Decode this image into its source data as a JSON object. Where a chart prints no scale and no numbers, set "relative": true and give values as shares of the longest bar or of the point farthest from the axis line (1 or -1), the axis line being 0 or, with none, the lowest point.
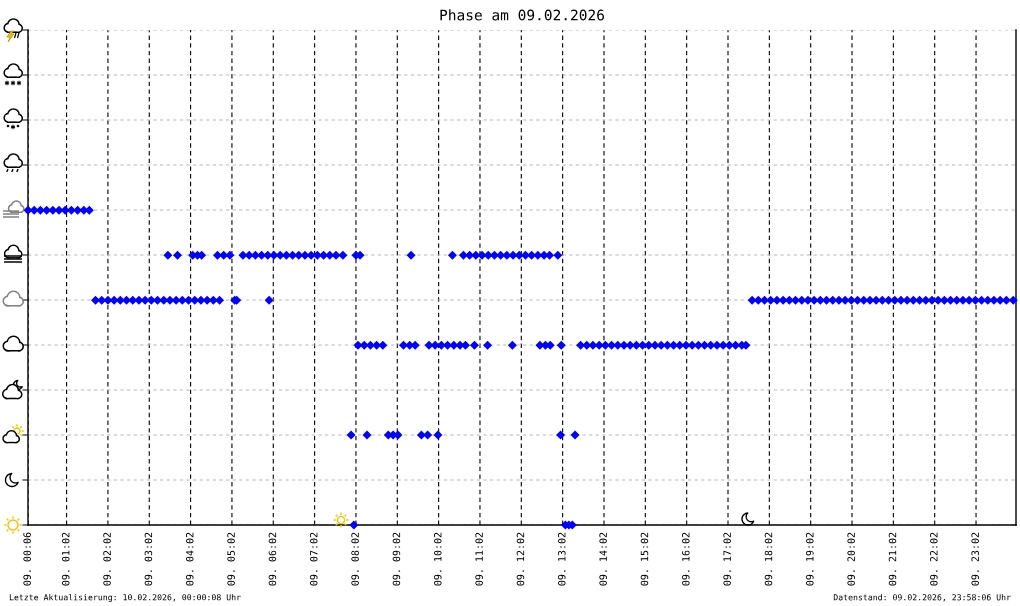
{
  "chart_data": {
    "type": "scatter",
    "title": "Phase am 09.02.2026",
    "annotations": [
      "Letzte Aktualisierung: 10.02.2026, 00:00:08 Uhr",
      "Datenstand: 09.02.2026, 23:58:06 Uhr"
    ],
    "relative": true,
    "x": [
      "2026-02-09T00:06",
      "2026-02-09T00:15",
      "2026-02-09T00:24",
      "2026-02-09T00:33",
      "2026-02-09T00:42",
      "2026-02-09T00:51",
      "2026-02-09T01:00",
      "2026-02-09T01:09",
      "2026-02-09T01:18",
      "2026-02-09T01:27",
      "2026-02-09T01:35",
      "2026-02-09T01:44",
      "2026-02-09T01:53",
      "2026-02-09T02:02",
      "2026-02-09T02:11",
      "2026-02-09T02:20",
      "2026-02-09T02:29",
      "2026-02-09T02:38",
      "2026-02-09T02:47",
      "2026-02-09T02:56",
      "2026-02-09T03:05",
      "2026-02-09T03:14",
      "2026-02-09T03:23",
      "2026-02-09T03:32",
      "2026-02-09T03:41",
      "2026-02-09T03:50",
      "2026-02-09T03:59",
      "2026-02-09T04:08",
      "2026-02-09T04:17",
      "2026-02-09T04:26",
      "2026-02-09T04:35",
      "2026-02-09T04:44",
      "2026-02-09T05:06",
      "2026-02-09T05:09",
      "2026-02-09T05:56",
      "2026-02-09T03:29",
      "2026-02-09T03:43",
      "2026-02-09T04:05",
      "2026-02-09T04:12",
      "2026-02-09T04:18",
      "2026-02-09T04:41",
      "2026-02-09T04:50",
      "2026-02-09T04:59",
      "2026-02-09T05:18",
      "2026-02-09T05:27",
      "2026-02-09T05:36",
      "2026-02-09T05:45",
      "2026-02-09T05:54",
      "2026-02-09T06:03",
      "2026-02-09T06:12",
      "2026-02-09T06:21",
      "2026-02-09T06:30",
      "2026-02-09T06:39",
      "2026-02-09T06:48",
      "2026-02-09T06:57",
      "2026-02-09T07:06",
      "2026-02-09T07:15",
      "2026-02-09T07:24",
      "2026-02-09T07:33",
      "2026-02-09T07:43",
      "2026-02-09T08:02",
      "2026-02-09T08:08",
      "2026-02-09T09:22",
      "2026-02-09T10:22",
      "2026-02-09T10:38",
      "2026-02-09T10:47",
      "2026-02-09T10:56",
      "2026-02-09T11:05",
      "2026-02-09T11:14",
      "2026-02-09T11:23",
      "2026-02-09T11:32",
      "2026-02-09T11:41",
      "2026-02-09T11:50",
      "2026-02-09T11:59",
      "2026-02-09T12:08",
      "2026-02-09T12:17",
      "2026-02-09T12:26",
      "2026-02-09T12:35",
      "2026-02-09T12:43",
      "2026-02-09T12:55",
      "2026-02-09T08:05",
      "2026-02-09T08:14",
      "2026-02-09T08:23",
      "2026-02-09T08:32",
      "2026-02-09T08:41",
      "2026-02-09T09:11",
      "2026-02-09T09:20",
      "2026-02-09T09:28",
      "2026-02-09T09:48",
      "2026-02-09T09:57",
      "2026-02-09T10:06",
      "2026-02-09T10:15",
      "2026-02-09T10:24",
      "2026-02-09T10:33",
      "2026-02-09T10:41",
      "2026-02-09T10:54",
      "2026-02-09T11:13",
      "2026-02-09T11:49",
      "2026-02-09T12:29",
      "2026-02-09T12:37",
      "2026-02-09T12:44",
      "2026-02-09T13:00",
      "2026-02-09T13:28",
      "2026-02-09T13:37",
      "2026-02-09T13:46",
      "2026-02-09T13:55",
      "2026-02-09T14:04",
      "2026-02-09T14:13",
      "2026-02-09T14:22",
      "2026-02-09T14:31",
      "2026-02-09T14:40",
      "2026-02-09T14:49",
      "2026-02-09T14:58",
      "2026-02-09T15:07",
      "2026-02-09T15:16",
      "2026-02-09T15:25",
      "2026-02-09T15:34",
      "2026-02-09T15:43",
      "2026-02-09T15:52",
      "2026-02-09T16:01",
      "2026-02-09T16:10",
      "2026-02-09T16:19",
      "2026-02-09T16:28",
      "2026-02-09T16:37",
      "2026-02-09T16:46",
      "2026-02-09T16:55",
      "2026-02-09T17:04",
      "2026-02-09T17:13",
      "2026-02-09T17:22",
      "2026-02-09T17:28",
      "2026-02-09T07:55",
      "2026-02-09T08:18",
      "2026-02-09T08:49",
      "2026-02-09T08:56",
      "2026-02-09T09:03",
      "2026-02-09T09:37",
      "2026-02-09T09:46",
      "2026-02-09T10:01",
      "2026-02-09T12:59",
      "2026-02-09T13:20",
      "2026-02-09T07:59",
      "2026-02-09T13:06",
      "2026-02-09T13:11",
      "2026-02-09T13:16",
      "2026-02-09T17:37",
      "2026-02-09T17:46",
      "2026-02-09T17:55",
      "2026-02-09T18:04",
      "2026-02-09T18:13",
      "2026-02-09T18:22",
      "2026-02-09T18:31",
      "2026-02-09T18:40",
      "2026-02-09T18:49",
      "2026-02-09T18:58",
      "2026-02-09T19:07",
      "2026-02-09T19:16",
      "2026-02-09T19:25",
      "2026-02-09T19:34",
      "2026-02-09T19:43",
      "2026-02-09T19:52",
      "2026-02-09T20:01",
      "2026-02-09T20:10",
      "2026-02-09T20:19",
      "2026-02-09T20:28",
      "2026-02-09T20:37",
      "2026-02-09T20:46",
      "2026-02-09T20:55",
      "2026-02-09T21:04",
      "2026-02-09T21:13",
      "2026-02-09T21:22",
      "2026-02-09T21:31",
      "2026-02-09T21:40",
      "2026-02-09T21:49",
      "2026-02-09T21:58",
      "2026-02-09T22:07",
      "2026-02-09T22:16",
      "2026-02-09T22:25",
      "2026-02-09T22:34",
      "2026-02-09T22:43",
      "2026-02-09T22:52",
      "2026-02-09T23:01",
      "2026-02-09T23:10",
      "2026-02-09T23:19",
      "2026-02-09T23:28",
      "2026-02-09T23:37",
      "2026-02-09T23:46",
      "2026-02-09T23:56"
    ],
    "values": [
      1,
      1,
      1,
      1,
      1,
      1,
      1,
      1,
      1,
      1,
      1,
      0.714,
      0.714,
      0.714,
      0.714,
      0.714,
      0.714,
      0.714,
      0.714,
      0.714,
      0.714,
      0.714,
      0.714,
      0.714,
      0.714,
      0.714,
      0.714,
      0.714,
      0.714,
      0.714,
      0.714,
      0.714,
      0.714,
      0.714,
      0.714,
      0.857,
      0.857,
      0.857,
      0.857,
      0.857,
      0.857,
      0.857,
      0.857,
      0.857,
      0.857,
      0.857,
      0.857,
      0.857,
      0.857,
      0.857,
      0.857,
      0.857,
      0.857,
      0.857,
      0.857,
      0.857,
      0.857,
      0.857,
      0.857,
      0.857,
      0.857,
      0.857,
      0.857,
      0.857,
      0.857,
      0.857,
      0.857,
      0.857,
      0.857,
      0.857,
      0.857,
      0.857,
      0.857,
      0.857,
      0.857,
      0.857,
      0.857,
      0.857,
      0.857,
      0.857,
      0.571,
      0.571,
      0.571,
      0.571,
      0.571,
      0.571,
      0.571,
      0.571,
      0.571,
      0.571,
      0.571,
      0.571,
      0.571,
      0.571,
      0.571,
      0.571,
      0.571,
      0.571,
      0.571,
      0.571,
      0.571,
      0.571,
      0.571,
      0.571,
      0.571,
      0.571,
      0.571,
      0.571,
      0.571,
      0.571,
      0.571,
      0.571,
      0.571,
      0.571,
      0.571,
      0.571,
      0.571,
      0.571,
      0.571,
      0.571,
      0.571,
      0.571,
      0.571,
      0.571,
      0.571,
      0.571,
      0.571,
      0.571,
      0.571,
      0.571,
      0.286,
      0.286,
      0.286,
      0.286,
      0.286,
      0.286,
      0.286,
      0.286,
      0.286,
      0.286,
      0,
      0,
      0,
      0,
      0.714,
      0.714,
      0.714,
      0.714,
      0.714,
      0.714,
      0.714,
      0.714,
      0.714,
      0.714,
      0.714,
      0.714,
      0.714,
      0.714,
      0.714,
      0.714,
      0.714,
      0.714,
      0.714,
      0.714,
      0.714,
      0.714,
      0.714,
      0.714,
      0.714,
      0.714,
      0.714,
      0.714,
      0.714,
      0.714,
      0.714,
      0.714,
      0.714,
      0.714,
      0.714,
      0.714,
      0.714,
      0.714,
      0.714,
      0.714,
      0.714,
      0.714,
      0.714
    ],
    "color": "#0000ff",
    "marker": "diamond",
    "xlim": [
      "2026-02-09T00:06",
      "2026-02-10T00:00"
    ],
    "xticks": [
      {
        "value": "2026-02-09T00:06",
        "label": "09. 00:06"
      },
      {
        "value": "2026-02-09T01:02",
        "label": "09. 01:02"
      },
      {
        "value": "2026-02-09T02:02",
        "label": "09. 02:02"
      },
      {
        "value": "2026-02-09T03:02",
        "label": "09. 03:02"
      },
      {
        "value": "2026-02-09T04:02",
        "label": "09. 04:02"
      },
      {
        "value": "2026-02-09T05:02",
        "label": "09. 05:02"
      },
      {
        "value": "2026-02-09T06:02",
        "label": "09. 06:02"
      },
      {
        "value": "2026-02-09T07:02",
        "label": "09. 07:02"
      },
      {
        "value": "2026-02-09T08:02",
        "label": "09. 08:02"
      },
      {
        "value": "2026-02-09T09:02",
        "label": "09. 09:02"
      },
      {
        "value": "2026-02-09T10:02",
        "label": "09. 10:02"
      },
      {
        "value": "2026-02-09T11:02",
        "label": "09. 11:02"
      },
      {
        "value": "2026-02-09T12:02",
        "label": "09. 12:02"
      },
      {
        "value": "2026-02-09T13:02",
        "label": "09. 13:02"
      },
      {
        "value": "2026-02-09T14:02",
        "label": "09. 14:02"
      },
      {
        "value": "2026-02-09T15:02",
        "label": "09. 15:02"
      },
      {
        "value": "2026-02-09T16:02",
        "label": "09. 16:02"
      },
      {
        "value": "2026-02-09T17:02",
        "label": "09. 17:02"
      },
      {
        "value": "2026-02-09T18:02",
        "label": "09. 18:02"
      },
      {
        "value": "2026-02-09T19:02",
        "label": "09. 19:02"
      },
      {
        "value": "2026-02-09T20:02",
        "label": "09. 20:02"
      },
      {
        "value": "2026-02-09T21:02",
        "label": "09. 21:02"
      },
      {
        "value": "2026-02-09T22:02",
        "label": "09. 22:02"
      },
      {
        "value": "2026-02-09T23:02",
        "label": "09. 23:02"
      }
    ],
    "grid": true,
    "tick_labels": "x"
  }
}
